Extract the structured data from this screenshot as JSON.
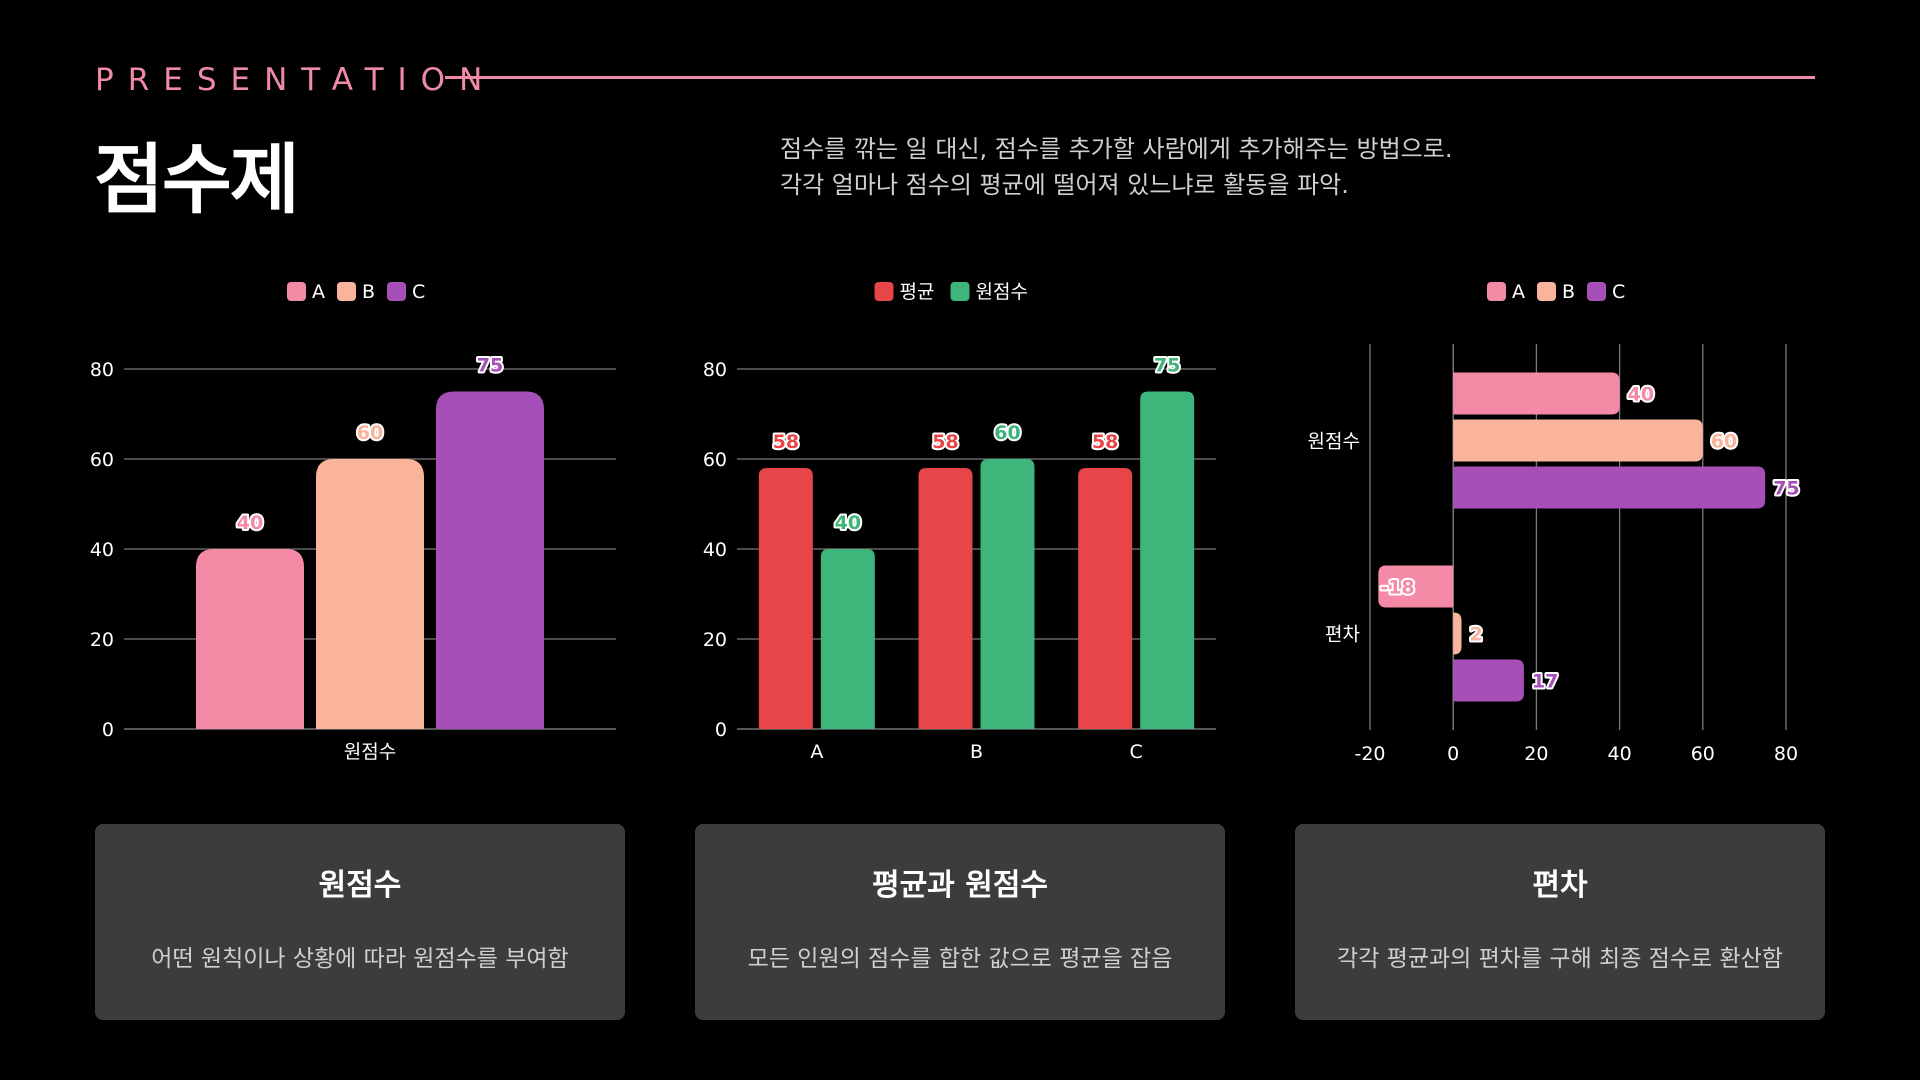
{
  "header": {
    "kicker": "PRESENTATION",
    "title": "점수제",
    "subtitle_line1": "점수를 깎는 일 대신, 점수를 추가할 사람에게 추가해주는 방법으로.",
    "subtitle_line2": "각각 얼마나 점수의 평균에 떨어져 있느냐로 활동을 파악."
  },
  "colors": {
    "A": "#f48aa6",
    "B": "#fbb49c",
    "C": "#a64fb8",
    "avg": "#e84549",
    "raw": "#3eb57a",
    "accent": "#f08aa6"
  },
  "chart_data": [
    {
      "type": "bar",
      "categories": [
        "원점수"
      ],
      "series": [
        {
          "name": "A",
          "values": [
            40
          ]
        },
        {
          "name": "B",
          "values": [
            60
          ]
        },
        {
          "name": "C",
          "values": [
            75
          ]
        }
      ],
      "ylim": [
        0,
        80
      ],
      "yticks": [
        0,
        20,
        40,
        60,
        80
      ],
      "legend": "top",
      "grid": true
    },
    {
      "type": "bar",
      "categories": [
        "A",
        "B",
        "C"
      ],
      "series": [
        {
          "name": "평균",
          "values": [
            58,
            58,
            58
          ]
        },
        {
          "name": "원점수",
          "values": [
            40,
            60,
            75
          ]
        }
      ],
      "ylim": [
        0,
        80
      ],
      "yticks": [
        0,
        20,
        40,
        60,
        80
      ],
      "legend": "top",
      "grid": true
    },
    {
      "type": "bar",
      "orientation": "horizontal",
      "categories": [
        "원점수",
        "편차"
      ],
      "series": [
        {
          "name": "A",
          "values": [
            40,
            -18
          ]
        },
        {
          "name": "B",
          "values": [
            60,
            2
          ]
        },
        {
          "name": "C",
          "values": [
            75,
            17
          ]
        }
      ],
      "xlim": [
        -20,
        80
      ],
      "xticks": [
        -20,
        0,
        20,
        40,
        60,
        80
      ],
      "legend": "top",
      "grid": true
    }
  ],
  "cards": [
    {
      "title": "원점수",
      "desc": "어떤 원칙이나 상황에 따라 원점수를 부여함"
    },
    {
      "title": "평균과 원점수",
      "desc": "모든 인원의 점수를 합한 값으로 평균을 잡음"
    },
    {
      "title": "편차",
      "desc": "각각 평균과의 편차를 구해 최종 점수로 환산함"
    }
  ]
}
